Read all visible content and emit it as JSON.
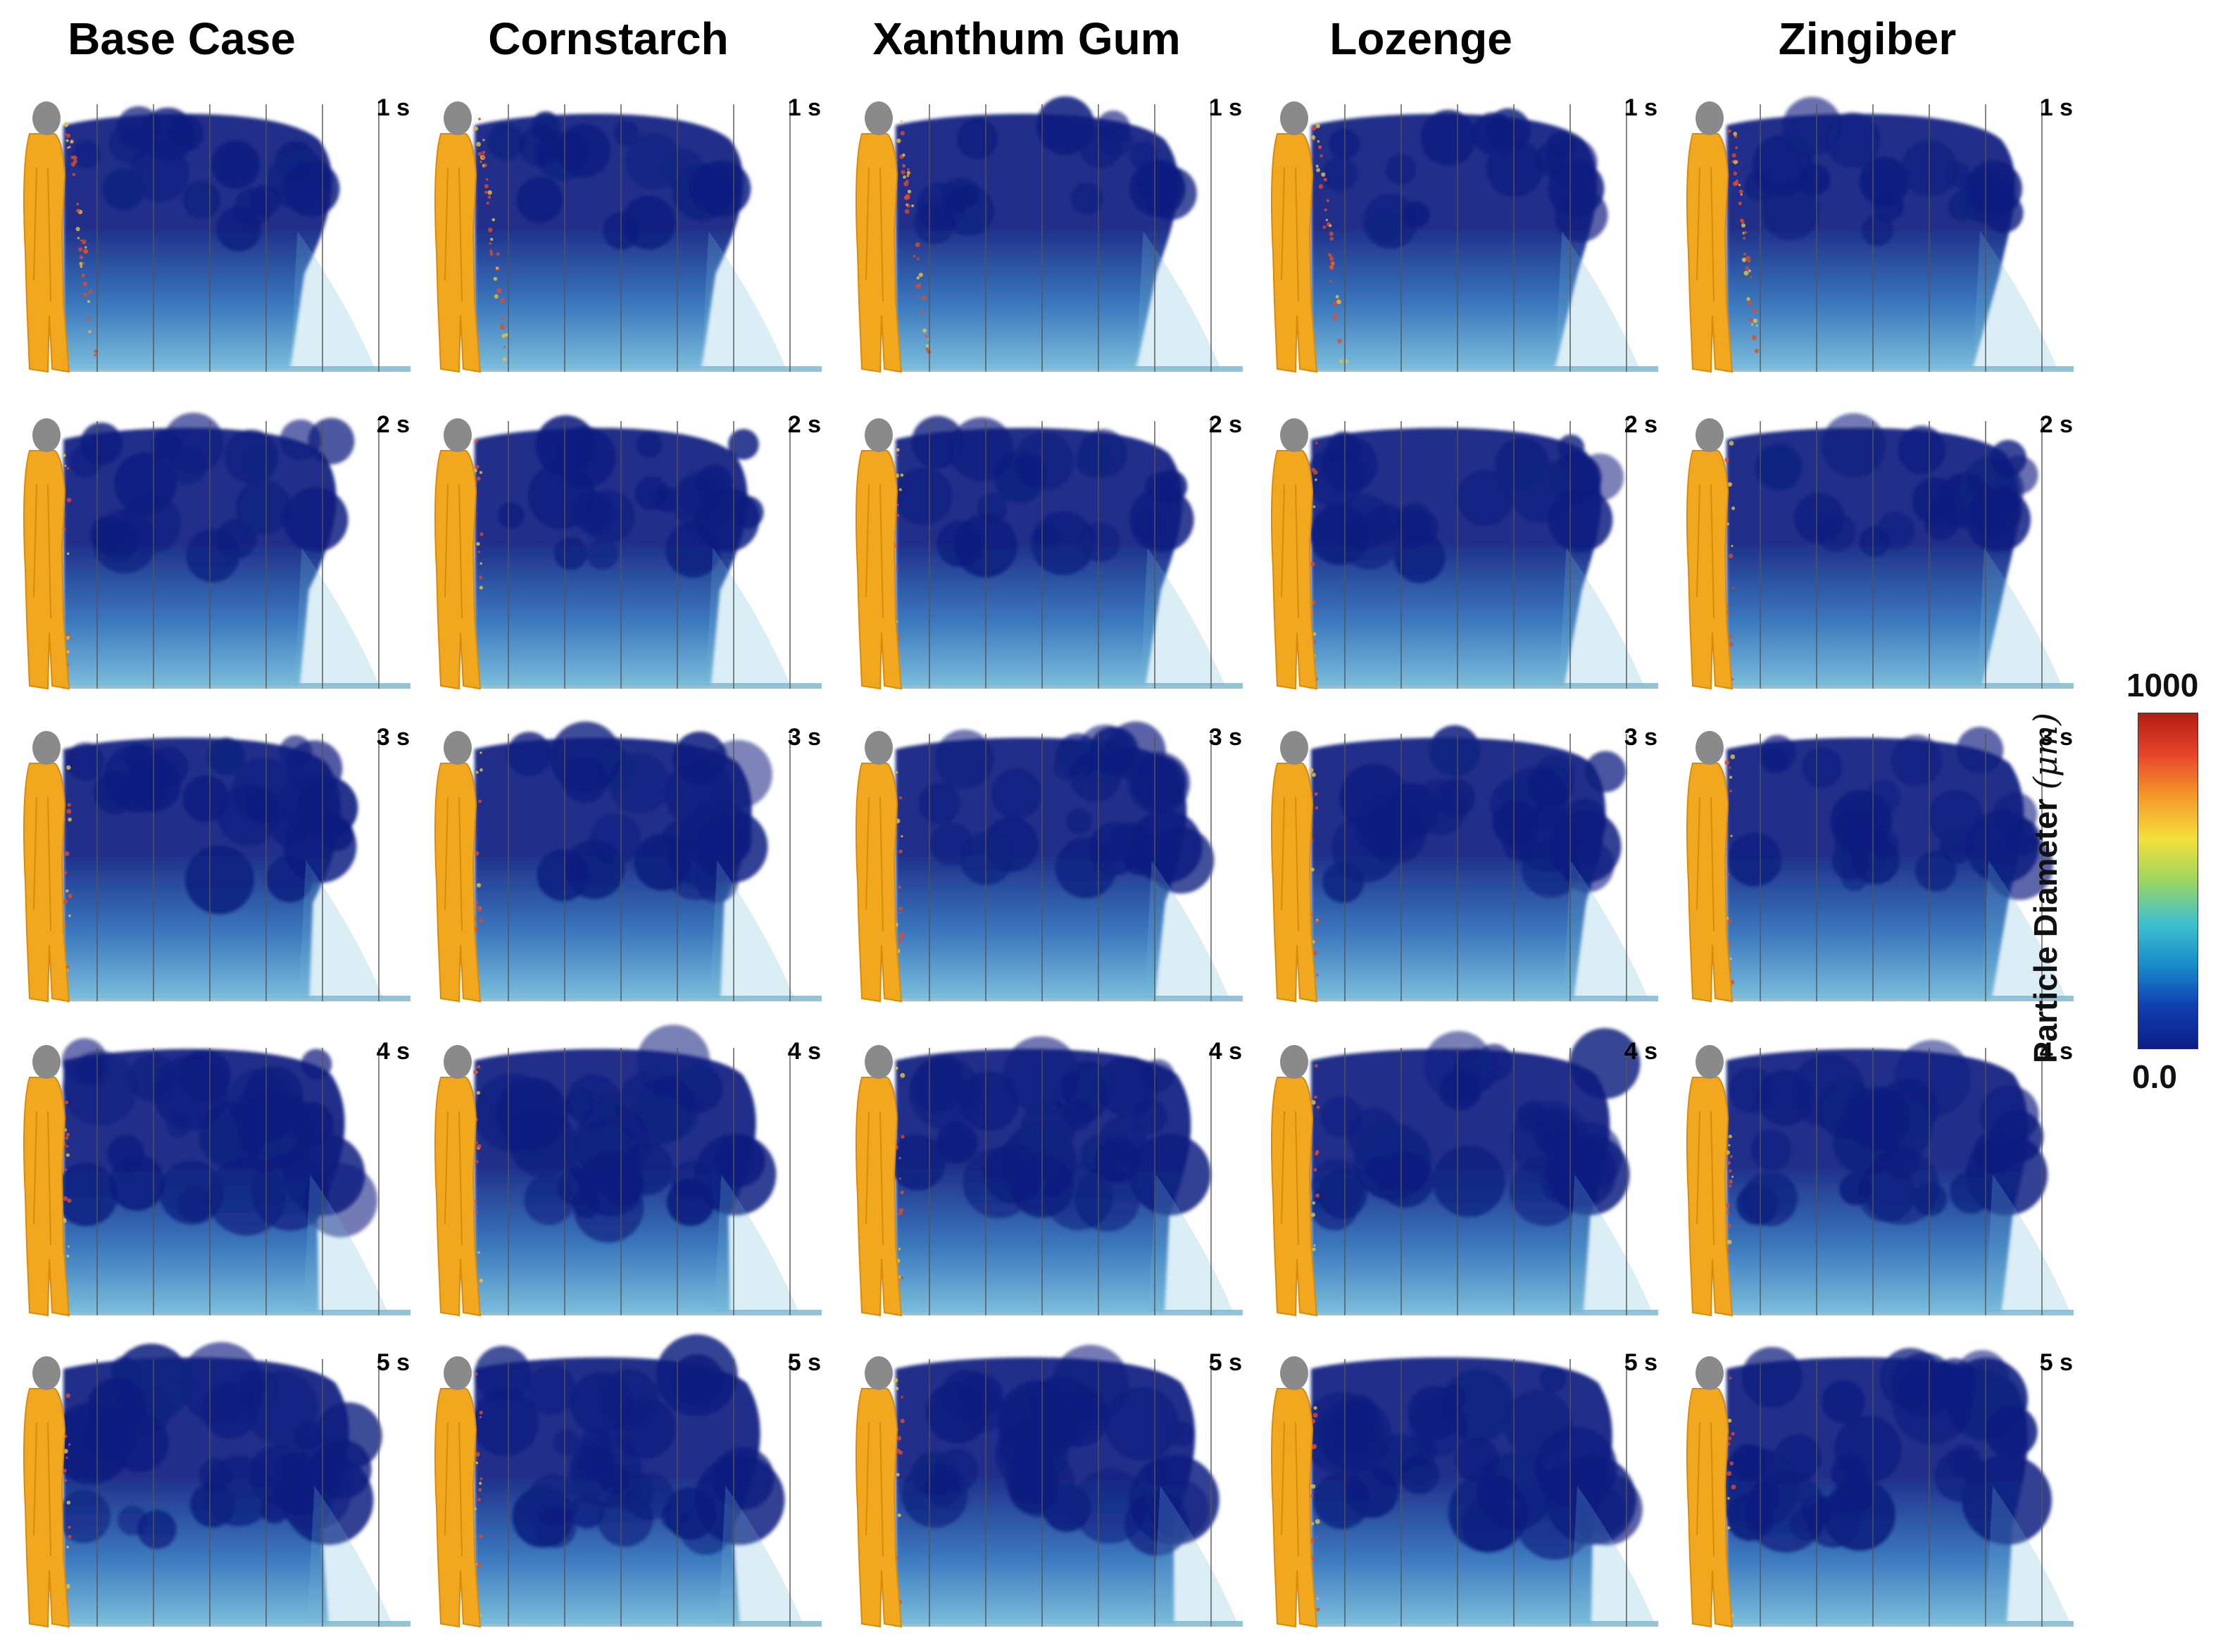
{
  "columns": [
    {
      "title": "Base Case",
      "spread": 0.62,
      "tilt": 0.0
    },
    {
      "title": "Cornstarch",
      "spread": 0.62,
      "tilt": 0.0
    },
    {
      "title": "Xanthum Gum",
      "spread": 0.78,
      "tilt": 0.15
    },
    {
      "title": "Lozenge",
      "spread": 0.82,
      "tilt": 0.2
    },
    {
      "title": "Zingiber",
      "spread": 0.85,
      "tilt": 0.3
    }
  ],
  "time_labels": [
    "1 s",
    "2 s",
    "3 s",
    "4 s",
    "5 s"
  ],
  "colorbar": {
    "title": "Particle Diameter",
    "unit": "(μm)",
    "max_label": "1000",
    "min_label": "0.0",
    "stops": [
      "#0b1e86",
      "#0f3fb0",
      "#1a8cc9",
      "#3fc1d0",
      "#9bd560",
      "#f2e03a",
      "#f59a2a",
      "#e8462a",
      "#b31d12"
    ]
  },
  "colors": {
    "figure": "#f2a81e",
    "figure_dark": "#d98a0a",
    "head": "#8a8a8a",
    "plume": "#0d1f80",
    "plume_mid": "#2a6cb8",
    "plume_light": "#6fb6d8",
    "large_particles": "#e04a2a",
    "grid": "#555555"
  }
}
